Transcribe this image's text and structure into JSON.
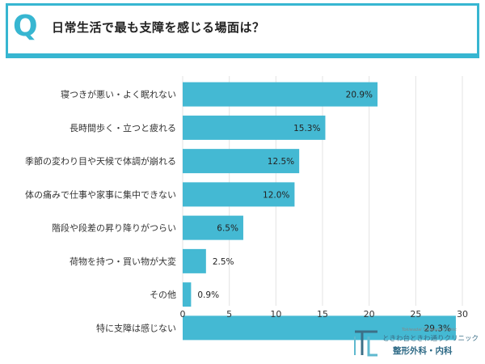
{
  "header": {
    "q_mark": "Q",
    "question": "日常生活で最も支障を感じる場面は？"
  },
  "colors": {
    "accent": "#37b6d1",
    "bar": "#44b9d3",
    "grid": "#e3e3e3",
    "text": "#333333"
  },
  "logo": {
    "small_text": "Tokiwadai Tokiwadori Clinic",
    "name": "ときわ台ときわ通りクリニック",
    "dept": "整形外科・内科"
  },
  "chart_data": {
    "type": "bar",
    "orientation": "horizontal",
    "categories": [
      "寝つきが悪い・よく眠れない",
      "長時間歩く・立つと疲れる",
      "季節の変わり目や天候で体調が崩れる",
      "体の痛みで仕事や家事に集中できない",
      "階段や段差の昇り降りがつらい",
      "荷物を持つ・買い物が大変",
      "その他",
      "特に支障は感じない"
    ],
    "values": [
      20.9,
      15.3,
      12.5,
      12.0,
      6.5,
      2.5,
      0.9,
      29.3
    ],
    "data_labels": [
      "20.9%",
      "15.3%",
      "12.5%",
      "12.0%",
      "6.5%",
      "2.5%",
      "0.9%",
      "29.3%"
    ],
    "xticks": [
      0,
      5,
      10,
      15,
      20,
      25,
      30
    ],
    "xlim": [
      0,
      30
    ],
    "grid": true,
    "legend": false
  }
}
